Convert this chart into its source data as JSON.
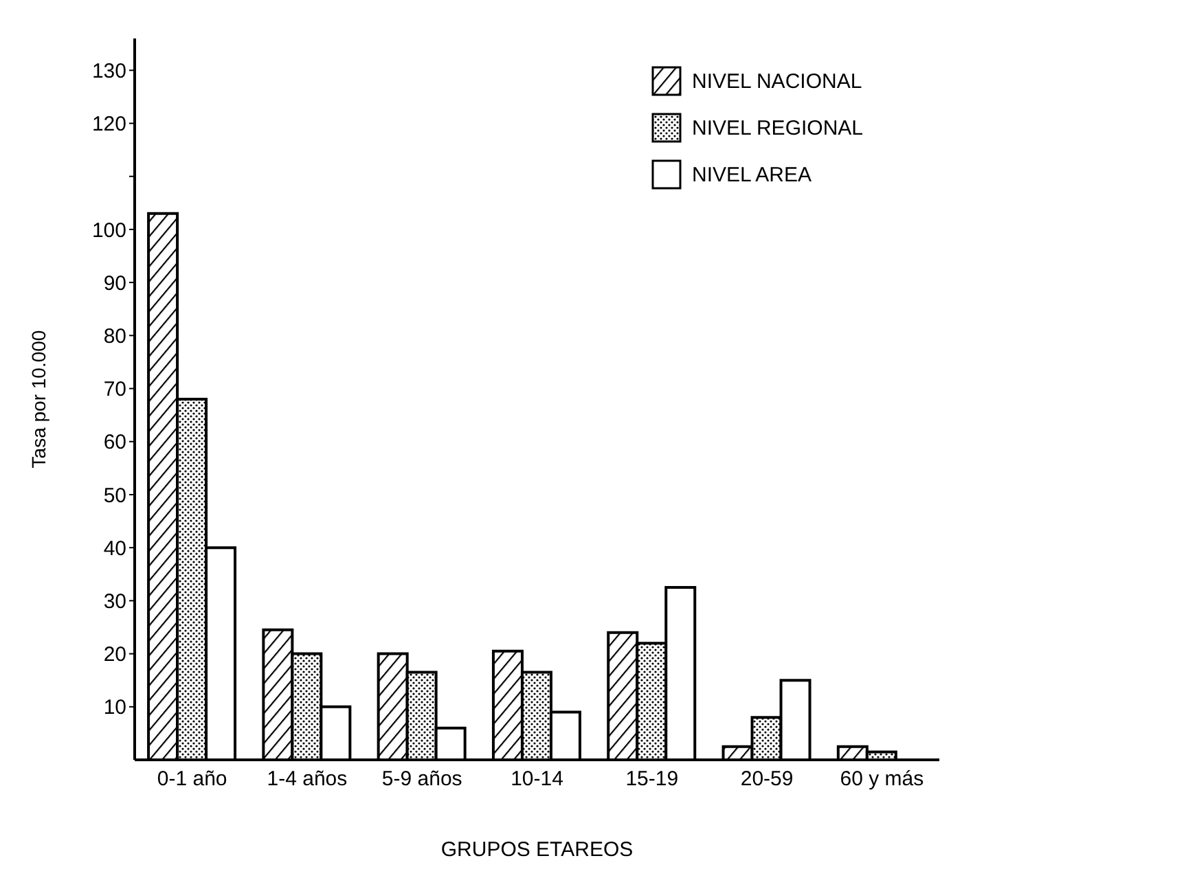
{
  "chart_data": {
    "type": "bar",
    "xlabel": "GRUPOS ETAREOS",
    "ylabel": "Tasa por 10.000",
    "categories": [
      "0-1 año",
      "1-4 años",
      "5-9 años",
      "10-14",
      "15-19",
      "20-59",
      "60 y más"
    ],
    "series": [
      {
        "name": "NIVEL NACIONAL",
        "color": "#000000",
        "values": [
          103,
          24.5,
          20,
          20.5,
          24,
          2.5,
          2.5
        ]
      },
      {
        "name": "NIVEL REGIONAL",
        "color": "#000000",
        "values": [
          68,
          20,
          16.5,
          16.5,
          22,
          8,
          1.5
        ]
      },
      {
        "name": "NIVEL AREA",
        "color": "#000000",
        "values": [
          40,
          10,
          6,
          9,
          32.5,
          15,
          null
        ]
      }
    ],
    "ylim": [
      0,
      136
    ],
    "yticks": [
      10,
      20,
      30,
      40,
      50,
      60,
      70,
      80,
      90,
      100,
      {
        "value": 110,
        "label": null
      },
      120,
      130
    ],
    "grid": false,
    "legend": "top right"
  }
}
